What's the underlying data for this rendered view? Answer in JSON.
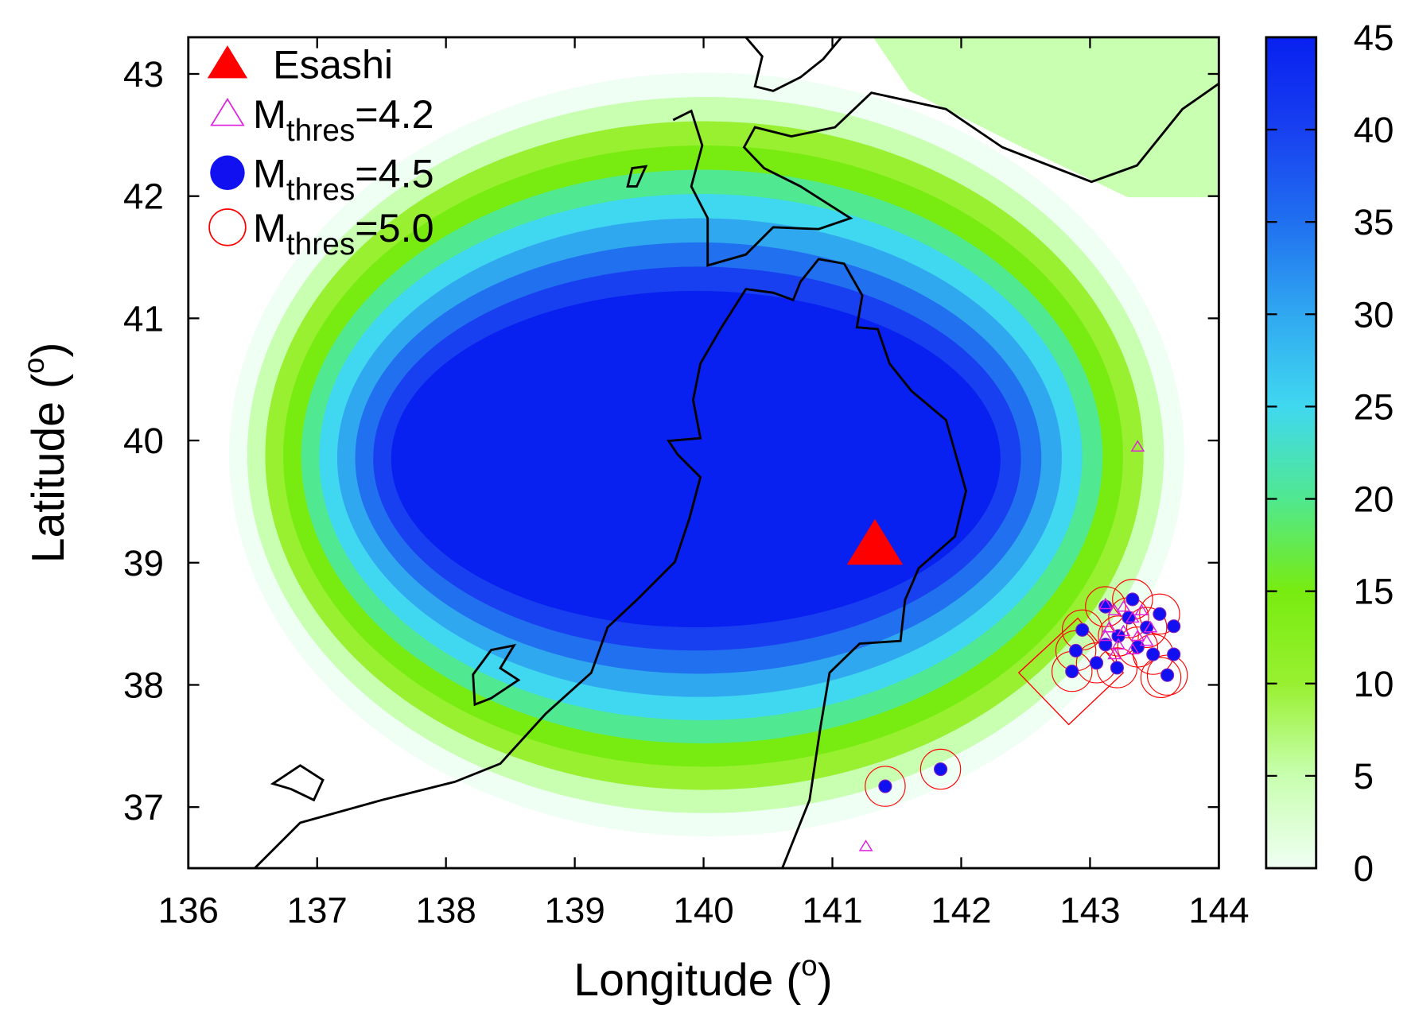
{
  "chart_data": {
    "type": "scatter",
    "xlabel": [
      "Longitude (",
      "o",
      ")"
    ],
    "ylabel": [
      "Latitude (",
      "o",
      ")"
    ],
    "xlim": [
      136,
      144
    ],
    "ylim": [
      36.5,
      43.3
    ],
    "xticks": [
      136,
      137,
      138,
      139,
      140,
      141,
      142,
      143,
      144
    ],
    "yticks": [
      37,
      38,
      39,
      40,
      41,
      42,
      43
    ],
    "legend": "upper left",
    "colorbar": {
      "lim": [
        0,
        45
      ],
      "ticks": [
        0,
        5,
        10,
        15,
        20,
        25,
        30,
        35,
        40,
        45
      ],
      "colormap": [
        "#f0fff4",
        "#c8ffb0",
        "#98f030",
        "#78ec10",
        "#50e890",
        "#40d8f0",
        "#30a8f0",
        "#2070f0",
        "#1840f0",
        "#0820f0"
      ]
    },
    "series": [
      {
        "name": [
          "Esashi"
        ],
        "color": "#ff0000",
        "marker": "filled-triangle",
        "x": [
          141.33
        ],
        "y": [
          39.15
        ]
      },
      {
        "name": [
          "M",
          "thres",
          "=4.2"
        ],
        "color": "#e020e0",
        "marker": "open-triangle",
        "x": [
          143.12,
          143.19,
          143.26,
          143.33,
          143.4,
          143.15,
          143.26,
          143.37,
          143.44,
          143.22,
          143.33,
          143.47,
          143.12,
          143.19,
          143.37,
          141.26
        ],
        "y": [
          38.66,
          38.61,
          38.64,
          38.55,
          38.61,
          38.47,
          38.44,
          38.4,
          38.36,
          38.33,
          38.29,
          38.47,
          38.4,
          38.25,
          39.95,
          36.68
        ]
      },
      {
        "name": [
          "M",
          "thres",
          "=4.5"
        ],
        "color": "#1010f0",
        "marker": "filled-circle",
        "x": [
          142.94,
          142.89,
          142.86,
          143.05,
          143.21,
          143.12,
          143.3,
          143.44,
          143.54,
          143.65,
          143.49,
          143.6,
          143.65,
          143.37,
          143.22,
          143.33,
          143.12,
          141.41,
          141.84
        ],
        "y": [
          38.45,
          38.28,
          38.11,
          38.18,
          38.14,
          38.64,
          38.55,
          38.47,
          38.58,
          38.48,
          38.25,
          38.08,
          38.25,
          38.31,
          38.4,
          38.7,
          38.33,
          37.17,
          37.31
        ]
      },
      {
        "name": [
          "M",
          "thres",
          "=5.0"
        ],
        "color": "#ff0000",
        "marker": "open-circle",
        "x": [
          142.94,
          142.89,
          142.86,
          143.05,
          143.21,
          143.12,
          143.3,
          143.44,
          143.54,
          143.49,
          143.6,
          143.37,
          143.22,
          143.33,
          143.55,
          141.41,
          141.84
        ],
        "y": [
          38.45,
          38.28,
          38.11,
          38.18,
          38.14,
          38.64,
          38.55,
          38.47,
          38.58,
          38.25,
          38.08,
          38.31,
          38.4,
          38.7,
          38.06,
          37.17,
          37.31
        ]
      }
    ]
  }
}
